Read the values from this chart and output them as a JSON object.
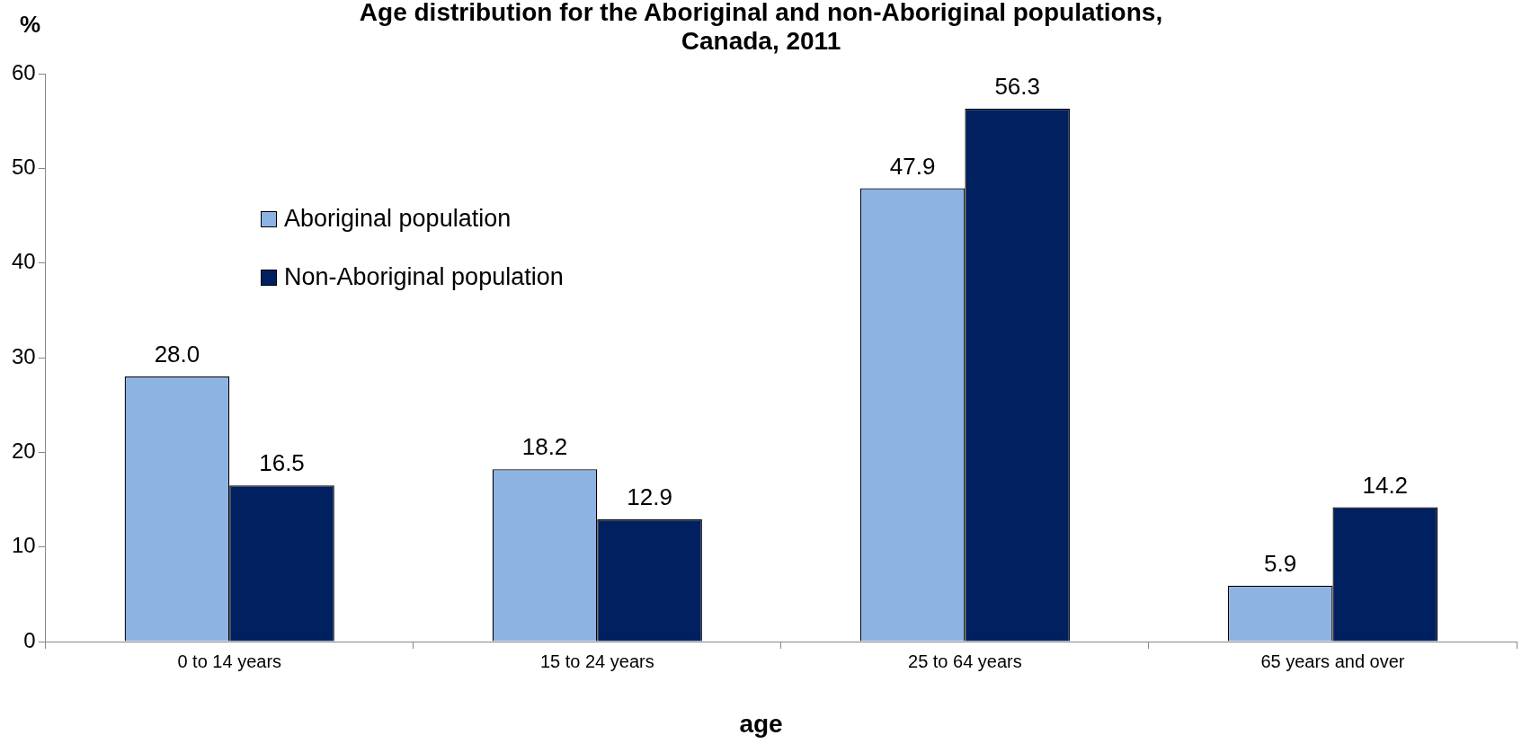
{
  "chart_data": {
    "type": "bar",
    "title": "Age distribution for the Aboriginal and non-Aboriginal populations, Canada, 2011",
    "xlabel": "age",
    "ylabel": "%",
    "categories": [
      "0 to 14 years",
      "15 to 24 years",
      "25 to 64 years",
      "65 years and over"
    ],
    "series": [
      {
        "name": "Aboriginal population",
        "color": "#8db3e2",
        "values": [
          28.0,
          18.2,
          47.9,
          5.9
        ],
        "value_labels": [
          "28.0",
          "18.2",
          "47.9",
          "5.9"
        ]
      },
      {
        "name": "Non-Aboriginal population",
        "color": "#002060",
        "values": [
          16.5,
          12.9,
          56.3,
          14.2
        ],
        "value_labels": [
          "16.5",
          "12.9",
          "56.3",
          "14.2"
        ]
      }
    ],
    "ylim": [
      0,
      60
    ],
    "yticks": [
      0,
      10,
      20,
      30,
      40,
      50,
      60
    ],
    "grid": false,
    "legend": "top left"
  }
}
